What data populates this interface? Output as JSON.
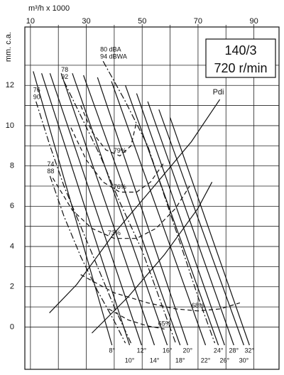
{
  "chart_data": {
    "type": "line",
    "x_label": "m³/h x 1000",
    "y_label": "mm. c.a.",
    "box_lines": [
      "140/3",
      "720 r/min"
    ],
    "xlim": [
      8,
      99
    ],
    "ylim": [
      -2.1,
      14.9
    ],
    "xticks": [
      10,
      30,
      50,
      70,
      90
    ],
    "xminor": [
      20,
      40,
      60,
      80
    ],
    "yticks": [
      0,
      2,
      4,
      6,
      8,
      10,
      12
    ],
    "yminor": [
      1,
      3,
      5,
      7,
      9,
      11,
      13
    ],
    "grid": true,
    "color": "#111111",
    "series": [
      {
        "name": "8°",
        "style": "solid",
        "x": [
          11,
          39.2
        ],
        "values": [
          12.7,
          -0.9
        ]
      },
      {
        "name": "10°",
        "style": "solid",
        "x": [
          14,
          45.5
        ],
        "values": [
          12.6,
          -0.9
        ]
      },
      {
        "name": "12°",
        "style": "solid",
        "x": [
          17,
          49.8
        ],
        "values": [
          12.6,
          -0.9
        ]
      },
      {
        "name": "14°",
        "style": "solid",
        "x": [
          21,
          54.4
        ],
        "values": [
          12.6,
          -0.9
        ]
      },
      {
        "name": "16°",
        "style": "solid",
        "x": [
          25,
          59
        ],
        "values": [
          12.6,
          -0.9
        ]
      },
      {
        "name": "18°",
        "style": "solid",
        "x": [
          29,
          63.6
        ],
        "values": [
          12.5,
          -0.9
        ]
      },
      {
        "name": "20°",
        "style": "solid",
        "x": [
          34,
          66.3
        ],
        "values": [
          12.4,
          -0.9
        ]
      },
      {
        "name": "22°",
        "style": "solid",
        "x": [
          39,
          72.7
        ],
        "values": [
          12.2,
          -0.9
        ]
      },
      {
        "name": "24°",
        "style": "solid",
        "x": [
          44,
          77.3
        ],
        "values": [
          12,
          -0.9
        ]
      },
      {
        "name": "26°",
        "style": "solid",
        "x": [
          48,
          79.5
        ],
        "values": [
          11.6,
          -0.9
        ]
      },
      {
        "name": "28°",
        "style": "solid",
        "x": [
          52,
          82.8
        ],
        "values": [
          11.2,
          -0.9
        ]
      },
      {
        "name": "30°",
        "style": "solid",
        "x": [
          56,
          86.4
        ],
        "values": [
          10.8,
          -0.9
        ]
      },
      {
        "name": "32°",
        "style": "solid",
        "x": [
          60,
          88.4
        ],
        "values": [
          10.4,
          -0.9
        ]
      },
      {
        "name": "79%",
        "style": "dashed",
        "x": [
          28,
          32,
          37,
          42,
          46,
          48
        ],
        "values": [
          11,
          9.7,
          8.8,
          8.5,
          9,
          10.2
        ]
      },
      {
        "name": "76%",
        "style": "dashed",
        "x": [
          24.5,
          30,
          36,
          42,
          48,
          53,
          58
        ],
        "values": [
          9.9,
          8.3,
          7.2,
          6.7,
          6.7,
          7.2,
          8.2
        ]
      },
      {
        "name": "73%",
        "style": "dashed",
        "x": [
          18,
          25,
          32,
          40,
          48,
          55,
          62,
          67
        ],
        "values": [
          7.4,
          5.8,
          4.9,
          4.4,
          4.4,
          4.9,
          5.9,
          7
        ]
      },
      {
        "name": "68%",
        "style": "dashed",
        "x": [
          28,
          40,
          52,
          62,
          70,
          78,
          85
        ],
        "values": [
          2.6,
          1.7,
          1.2,
          0.9,
          0.8,
          0.9,
          1.2
        ]
      },
      {
        "name": "65%",
        "style": "dashed",
        "x": [
          38,
          45,
          52,
          58
        ],
        "values": [
          0.9,
          0.35,
          0.05,
          -0.1
        ]
      },
      {
        "name": [
          "80 dBA",
          "94 dBWA"
        ],
        "style": "dashdot",
        "x": [
          36,
          44,
          52,
          58,
          64,
          70,
          76
        ],
        "values": [
          13.2,
          11.2,
          9,
          6.5,
          4,
          1.5,
          -0.8
        ]
      },
      {
        "name": [
          "78",
          "92"
        ],
        "style": "dashdot",
        "x": [
          22,
          28,
          35,
          42,
          50,
          56,
          62
        ],
        "values": [
          12.2,
          10.5,
          8.5,
          6.2,
          3.8,
          1.5,
          -0.8
        ]
      },
      {
        "name": [
          "76",
          "90"
        ],
        "style": "dashdot",
        "x": [
          12,
          17,
          22,
          28,
          34,
          40,
          46
        ],
        "values": [
          11.2,
          9,
          7,
          5,
          3,
          1,
          -0.8
        ]
      },
      {
        "name": [
          "74",
          "88"
        ],
        "style": "dashdot",
        "x": [
          17,
          22,
          28,
          34,
          40,
          44
        ],
        "values": [
          7.5,
          5.5,
          3.5,
          1.8,
          0.3,
          -0.8
        ]
      },
      {
        "name": "Pdi",
        "style": "solid",
        "x": [
          16.8,
          26.5,
          39.7,
          54.9,
          67.6,
          77.8
        ],
        "values": [
          0.7,
          2.1,
          4.6,
          7.1,
          9.2,
          11.3
        ]
      },
      {
        "style": "solid",
        "x": [
          32,
          45,
          58,
          70,
          75
        ],
        "values": [
          -0.3,
          1.5,
          3.6,
          5.9,
          7.2
        ]
      }
    ]
  }
}
